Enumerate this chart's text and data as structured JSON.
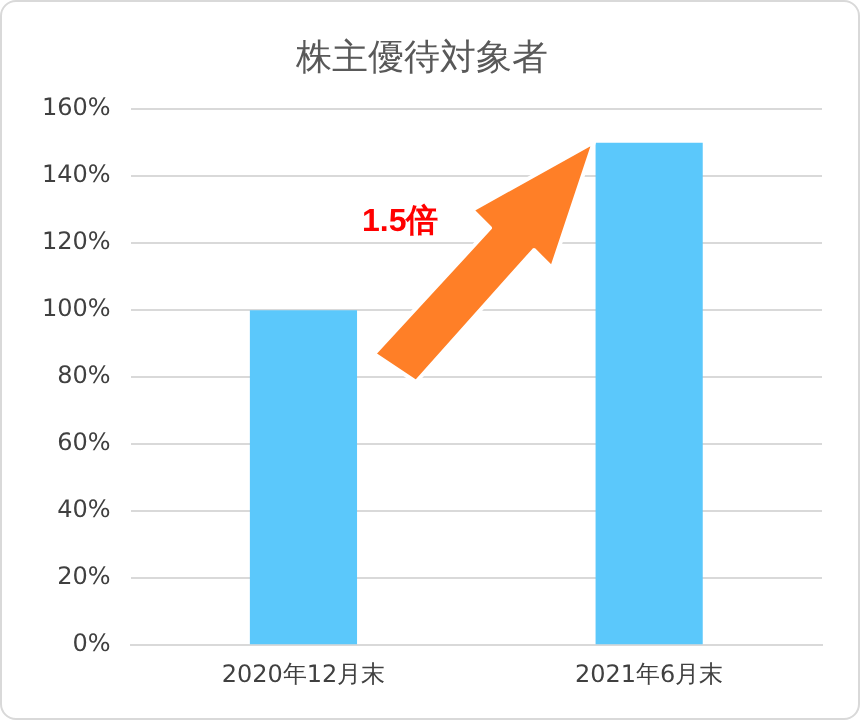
{
  "chart_data": {
    "type": "bar",
    "title": "株主優待対象者",
    "categories": [
      "2020年12月末",
      "2021年6月末"
    ],
    "values": [
      100,
      150
    ],
    "color": "#5bc8fb",
    "ylim": [
      0,
      160
    ],
    "yticks": [
      {
        "value": 0,
        "label": "0%"
      },
      {
        "value": 20,
        "label": "20%"
      },
      {
        "value": 40,
        "label": "40%"
      },
      {
        "value": 60,
        "label": "60%"
      },
      {
        "value": 80,
        "label": "80%"
      },
      {
        "value": 100,
        "label": "100%"
      },
      {
        "value": 120,
        "label": "120%"
      },
      {
        "value": 140,
        "label": "140%"
      },
      {
        "value": 160,
        "label": "160%"
      }
    ],
    "grid": "y",
    "annotations": [
      "1.5倍"
    ]
  }
}
